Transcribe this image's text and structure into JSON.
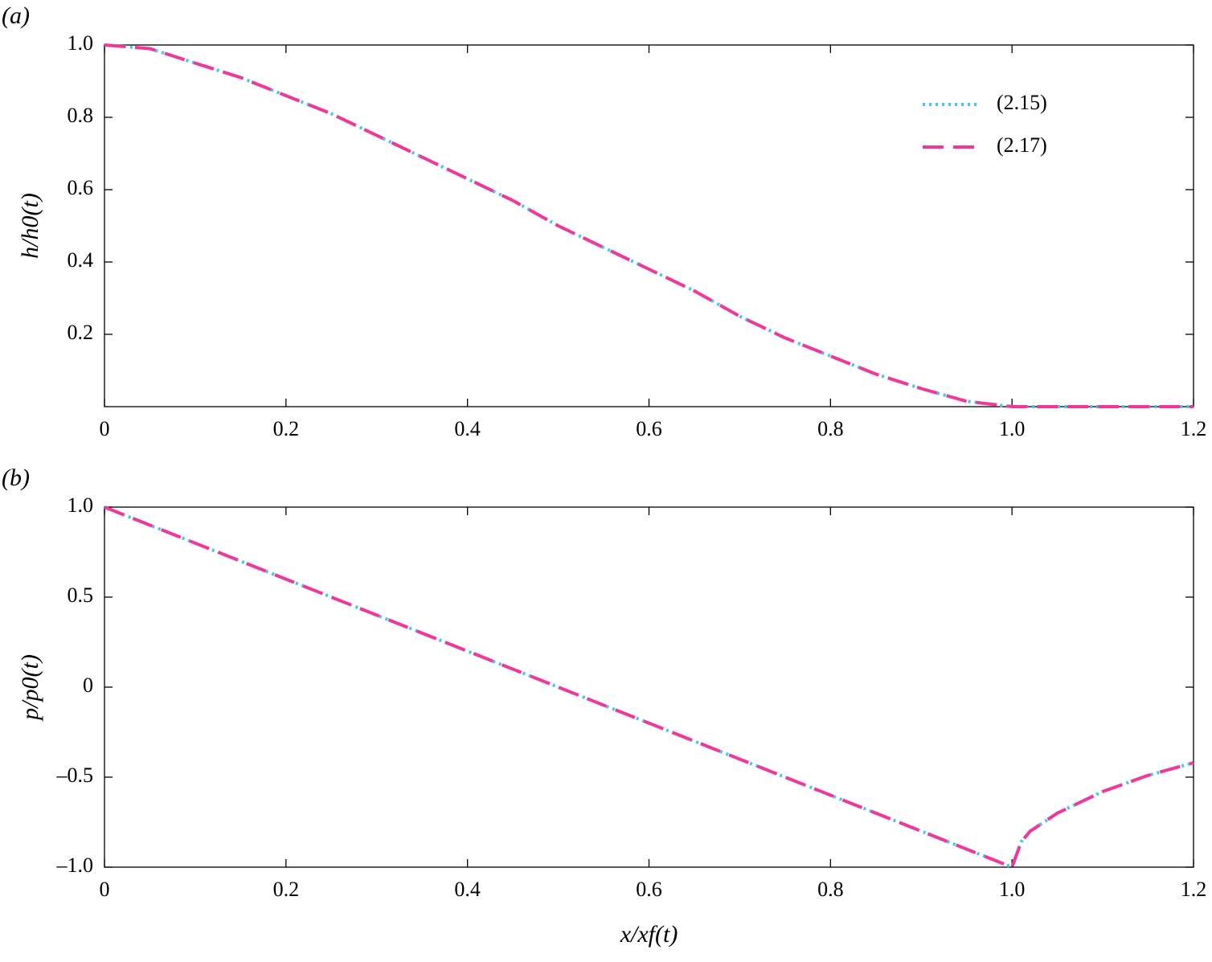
{
  "chart_data": [
    {
      "type": "line",
      "panel_label": "(a)",
      "y_label": "h/h0(t)",
      "x": [
        0,
        0.05,
        0.1,
        0.15,
        0.2,
        0.25,
        0.3,
        0.35,
        0.4,
        0.45,
        0.5,
        0.55,
        0.6,
        0.65,
        0.7,
        0.75,
        0.8,
        0.85,
        0.9,
        0.95,
        1.0,
        1.05,
        1.1,
        1.15,
        1.2
      ],
      "series": [
        {
          "name": "(2.15)",
          "color": "#4cc3ef",
          "style": "dotted",
          "values": [
            1.0,
            0.99,
            0.95,
            0.91,
            0.86,
            0.81,
            0.75,
            0.69,
            0.63,
            0.57,
            0.5,
            0.44,
            0.38,
            0.32,
            0.25,
            0.19,
            0.14,
            0.09,
            0.05,
            0.015,
            0,
            0,
            0,
            0,
            0
          ]
        },
        {
          "name": "(2.17)",
          "color": "#f0389a",
          "style": "dashed",
          "values": [
            1.0,
            0.99,
            0.95,
            0.91,
            0.86,
            0.81,
            0.75,
            0.69,
            0.63,
            0.57,
            0.5,
            0.44,
            0.38,
            0.32,
            0.25,
            0.19,
            0.14,
            0.09,
            0.05,
            0.015,
            0,
            0,
            0,
            0,
            0
          ]
        }
      ],
      "xlim": [
        0,
        1.2
      ],
      "ylim": [
        0,
        1
      ],
      "xticks": [
        0,
        0.2,
        0.4,
        0.6,
        0.8,
        {
          "value": 1,
          "label": "1.0"
        },
        1.2
      ],
      "yticks": [
        0.2,
        0.4,
        0.6,
        0.8,
        {
          "value": 1,
          "label": "1.0"
        }
      ],
      "legend": "upper right"
    },
    {
      "type": "line",
      "panel_label": "(b)",
      "y_label": "p/p0(t)",
      "x_label": "x/xf(t)",
      "x": [
        0,
        0.1,
        0.2,
        0.3,
        0.4,
        0.5,
        0.6,
        0.7,
        0.8,
        0.9,
        0.98,
        1.0,
        1.01,
        1.02,
        1.05,
        1.1,
        1.15,
        1.2
      ],
      "series": [
        {
          "name": "(2.15)",
          "color": "#4cc3ef",
          "style": "dotted",
          "values": [
            1.0,
            0.8,
            0.6,
            0.4,
            0.2,
            0,
            -0.2,
            -0.4,
            -0.6,
            -0.8,
            -0.96,
            -1.0,
            -0.86,
            -0.8,
            -0.7,
            -0.58,
            -0.49,
            -0.42
          ]
        },
        {
          "name": "(2.17)",
          "color": "#f0389a",
          "style": "dashed",
          "values": [
            1.0,
            0.8,
            0.6,
            0.4,
            0.2,
            0,
            -0.2,
            -0.4,
            -0.6,
            -0.8,
            -0.96,
            -1.0,
            -0.86,
            -0.8,
            -0.7,
            -0.58,
            -0.49,
            -0.42
          ]
        }
      ],
      "xlim": [
        0,
        1.2
      ],
      "ylim": [
        -1,
        1
      ],
      "xticks": [
        0,
        0.2,
        0.4,
        0.6,
        0.8,
        {
          "value": 1,
          "label": "1.0"
        },
        1.2
      ],
      "yticks": [
        {
          "value": -1,
          "label": "–1.0"
        },
        {
          "value": -0.5,
          "label": "–0.5"
        },
        0,
        0.5,
        {
          "value": 1,
          "label": "1.0"
        }
      ]
    }
  ]
}
